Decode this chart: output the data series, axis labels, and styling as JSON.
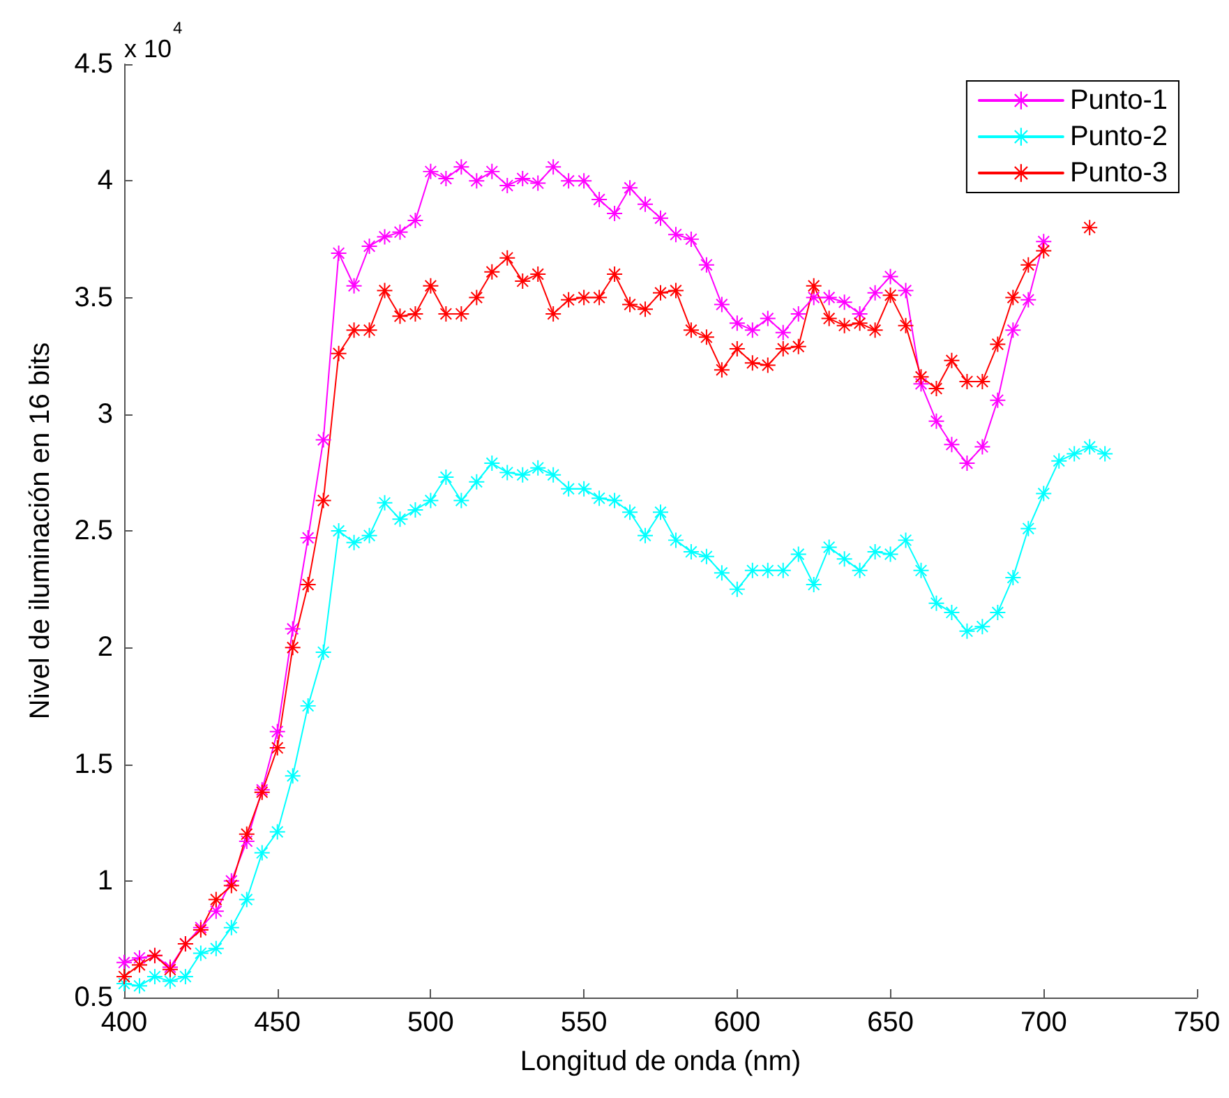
{
  "chart_data": {
    "type": "line",
    "xlabel": "Longitud de onda (nm)",
    "ylabel": "Nivel de iluminación en 16 bits",
    "annotations": [
      "x 10$^{4}$"
    ],
    "x": [
      400,
      405,
      410,
      415,
      420,
      425,
      430,
      435,
      440,
      445,
      450,
      455,
      460,
      465,
      470,
      475,
      480,
      485,
      490,
      495,
      500,
      505,
      510,
      515,
      520,
      525,
      530,
      535,
      540,
      545,
      550,
      555,
      560,
      565,
      570,
      575,
      580,
      585,
      590,
      595,
      600,
      605,
      610,
      615,
      620,
      625,
      630,
      635,
      640,
      645,
      650,
      655,
      660,
      665,
      670,
      675,
      680,
      685,
      690,
      695,
      700,
      705,
      710,
      715,
      720
    ],
    "series": [
      {
        "name": "Punto-1",
        "color": "#ff00ff",
        "values": [
          0.65,
          0.67,
          0.68,
          0.63,
          0.73,
          0.8,
          0.87,
          1.0,
          1.17,
          1.39,
          1.64,
          2.08,
          2.47,
          2.89,
          3.69,
          3.55,
          3.72,
          3.76,
          3.78,
          3.83,
          4.04,
          4.01,
          4.06,
          4.0,
          4.04,
          3.98,
          4.01,
          3.99,
          4.06,
          4.0,
          4.0,
          3.92,
          3.86,
          3.97,
          3.9,
          3.84,
          3.77,
          3.75,
          3.64,
          3.47,
          3.39,
          3.36,
          3.41,
          3.35,
          3.43,
          3.5,
          3.5,
          3.48,
          3.43,
          3.52,
          3.59,
          3.53,
          3.13,
          2.97,
          2.87,
          2.79,
          2.86,
          3.06,
          3.36,
          3.49,
          3.74,
          null,
          null,
          null,
          null
        ]
      },
      {
        "name": "Punto-2",
        "color": "#00ffff",
        "values": [
          0.56,
          0.55,
          0.59,
          0.57,
          0.59,
          0.69,
          0.71,
          0.8,
          0.92,
          1.12,
          1.21,
          1.45,
          1.75,
          1.98,
          2.5,
          2.45,
          2.48,
          2.62,
          2.55,
          2.59,
          2.63,
          2.73,
          2.63,
          2.71,
          2.79,
          2.75,
          2.74,
          2.77,
          2.74,
          2.68,
          2.68,
          2.64,
          2.63,
          2.58,
          2.48,
          2.58,
          2.46,
          2.41,
          2.39,
          2.32,
          2.25,
          2.33,
          2.33,
          2.33,
          2.4,
          2.27,
          2.43,
          2.38,
          2.33,
          2.41,
          2.4,
          2.46,
          2.33,
          2.19,
          2.15,
          2.07,
          2.09,
          2.15,
          2.3,
          2.51,
          2.66,
          2.8,
          2.83,
          2.86,
          2.83
        ]
      },
      {
        "name": "Punto-3",
        "color": "#ff0000",
        "values": [
          0.59,
          0.64,
          0.68,
          0.62,
          0.73,
          0.79,
          0.92,
          0.98,
          1.2,
          1.38,
          1.57,
          2.0,
          2.27,
          2.63,
          3.26,
          3.36,
          3.36,
          3.53,
          3.42,
          3.43,
          3.55,
          3.43,
          3.43,
          3.5,
          3.61,
          3.67,
          3.57,
          3.6,
          3.43,
          3.49,
          3.5,
          3.5,
          3.6,
          3.47,
          3.45,
          3.52,
          3.53,
          3.36,
          3.33,
          3.19,
          3.28,
          3.22,
          3.21,
          3.28,
          3.29,
          3.55,
          3.41,
          3.38,
          3.39,
          3.36,
          3.51,
          3.38,
          3.16,
          3.11,
          3.23,
          3.14,
          3.14,
          3.3,
          3.5,
          3.64,
          3.7,
          null,
          null,
          3.8,
          null
        ]
      }
    ],
    "xlim": [
      400,
      750
    ],
    "xticks": [
      400,
      450,
      500,
      550,
      600,
      650,
      700,
      750
    ],
    "ylim": [
      0.5,
      4.5
    ],
    "yticks": [
      0.5,
      1,
      1.5,
      2,
      2.5,
      3,
      3.5,
      4,
      4.5
    ],
    "grid": false,
    "legend": "top right",
    "marker": "star",
    "line_style": "solid"
  }
}
